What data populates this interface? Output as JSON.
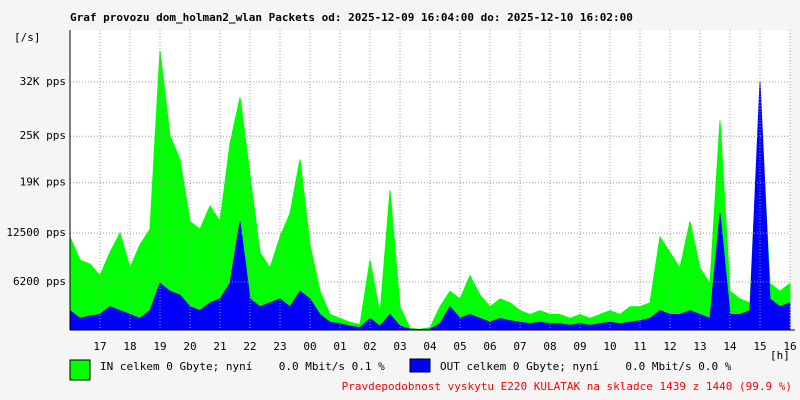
{
  "chart_data": {
    "type": "area",
    "title": "Graf provozu dom_holman2_wlan Packets od: 2025-12-09 16:04:00 do: 2025-12-10 16:02:00",
    "y_unit": "[/s]",
    "x_unit": "[h]",
    "categories": [
      null,
      null,
      null,
      "17",
      null,
      null,
      "18",
      null,
      null,
      "19",
      null,
      null,
      "20",
      null,
      null,
      "21",
      null,
      null,
      "22",
      null,
      null,
      "23",
      null,
      null,
      "00",
      null,
      null,
      "01",
      null,
      null,
      "02",
      null,
      null,
      "03",
      null,
      null,
      "04",
      null,
      null,
      "05",
      null,
      null,
      "06",
      null,
      null,
      "07",
      null,
      null,
      "08",
      null,
      null,
      "09",
      null,
      null,
      "10",
      null,
      null,
      "11",
      null,
      null,
      "12",
      null,
      null,
      "13",
      null,
      null,
      "14",
      null,
      null,
      "15",
      null,
      null,
      "16"
    ],
    "series": [
      {
        "name": "IN celkem 0 Gbyte; nyní    0.0 Mbit/s 0.1 %",
        "color": "#00ff00",
        "values": [
          12000,
          9000,
          8500,
          7000,
          10000,
          12500,
          8000,
          11000,
          13000,
          36000,
          25000,
          22000,
          14000,
          13000,
          16000,
          14000,
          24000,
          30000,
          20000,
          10000,
          8000,
          12000,
          15000,
          22000,
          11000,
          5000,
          2000,
          1500,
          1000,
          700,
          9000,
          2000,
          18000,
          3000,
          200,
          100,
          300,
          3000,
          5000,
          4000,
          7000,
          4500,
          3000,
          4000,
          3500,
          2500,
          2000,
          2500,
          2000,
          2000,
          1500,
          2000,
          1500,
          2000,
          2500,
          2000,
          3000,
          3000,
          3500,
          12000,
          10000,
          8000,
          14000,
          8000,
          6000,
          27000,
          5000,
          4000,
          3500,
          30000,
          6000,
          5000,
          6000
        ]
      },
      {
        "name": "OUT celkem 0 Gbyte; nyní    0.0 Mbit/s 0.0 %",
        "color": "#0000ff",
        "values": [
          2500,
          1500,
          1800,
          2000,
          3000,
          2500,
          2000,
          1500,
          2500,
          6000,
          5000,
          4500,
          3000,
          2500,
          3500,
          4000,
          6000,
          14000,
          4000,
          3000,
          3500,
          4000,
          3000,
          5000,
          4000,
          2000,
          1000,
          800,
          500,
          300,
          1500,
          500,
          2000,
          500,
          100,
          50,
          100,
          800,
          3000,
          1500,
          2000,
          1500,
          1000,
          1500,
          1200,
          1000,
          800,
          1000,
          800,
          800,
          600,
          800,
          600,
          800,
          1000,
          800,
          1000,
          1200,
          1500,
          2500,
          2000,
          2000,
          2500,
          2000,
          1500,
          15000,
          2000,
          2000,
          2500,
          32000,
          4000,
          3000,
          3500
        ]
      }
    ],
    "ylim": [
      0,
      38700
    ],
    "yticks": [
      {
        "value": 6200,
        "label": "6200 pps"
      },
      {
        "value": 12500,
        "label": "12500 pps"
      },
      {
        "value": 19000,
        "label": "19K pps"
      },
      {
        "value": 25000,
        "label": "25K pps"
      },
      {
        "value": 32000,
        "label": "32K pps"
      }
    ],
    "grid": true,
    "note": "Pravdepodobnost vyskytu E220 KULATAK na skladce 1439 z 1440 (99.9 %)"
  }
}
